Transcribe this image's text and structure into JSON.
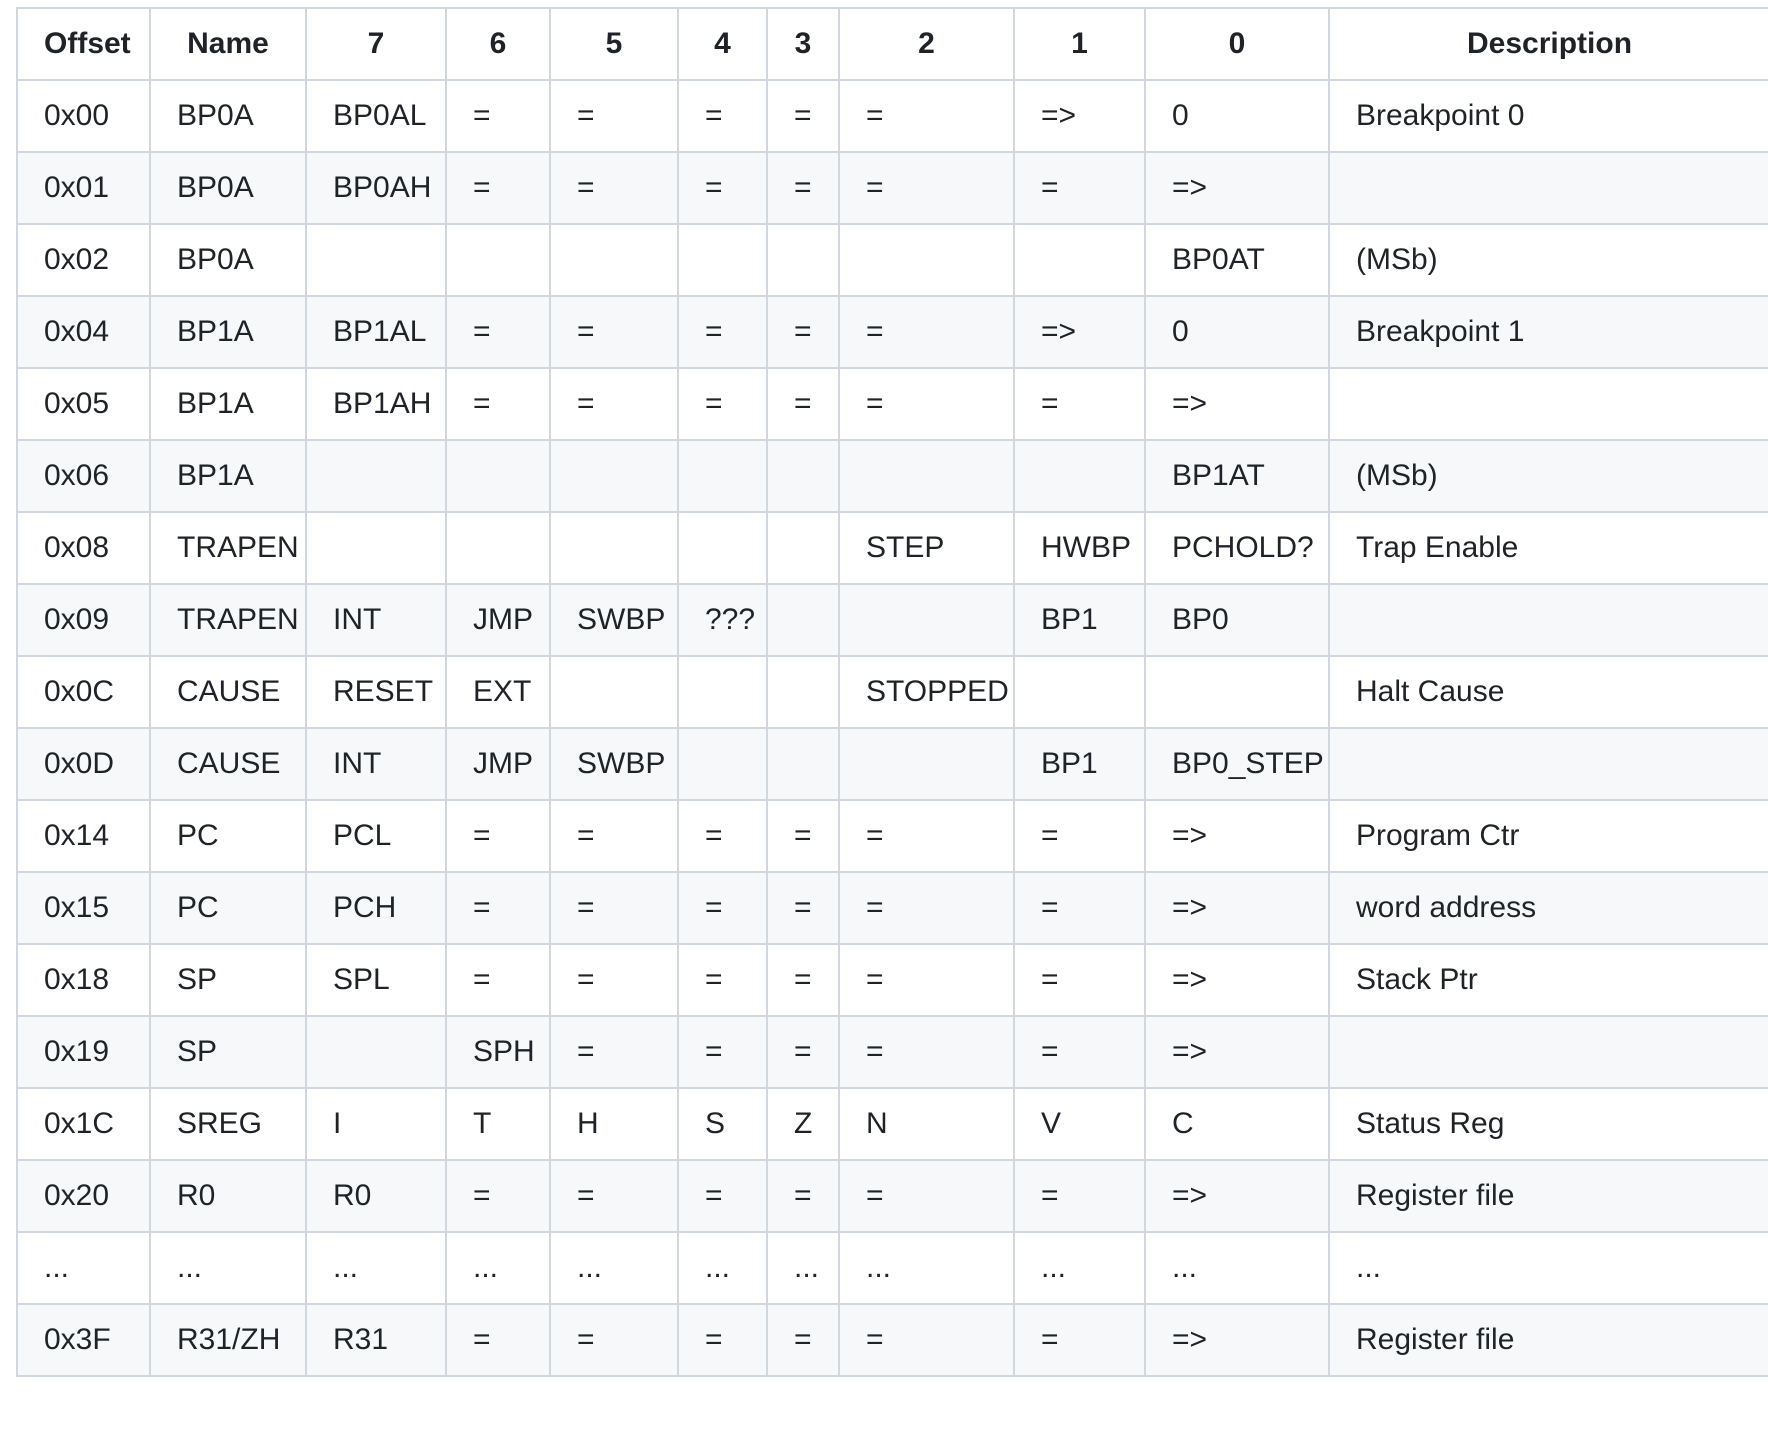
{
  "table": {
    "headers": [
      "Offset",
      "Name",
      "7",
      "6",
      "5",
      "4",
      "3",
      "2",
      "1",
      "0",
      "Description"
    ],
    "rows": [
      [
        "0x00",
        "BP0A",
        "BP0AL",
        "=",
        "=",
        "=",
        "=",
        "=",
        "=>",
        "0",
        "Breakpoint 0"
      ],
      [
        "0x01",
        "BP0A",
        "BP0AH",
        "=",
        "=",
        "=",
        "=",
        "=",
        "=",
        "=>",
        ""
      ],
      [
        "0x02",
        "BP0A",
        "",
        "",
        "",
        "",
        "",
        "",
        "",
        "BP0AT",
        "(MSb)"
      ],
      [
        "0x04",
        "BP1A",
        "BP1AL",
        "=",
        "=",
        "=",
        "=",
        "=",
        "=>",
        "0",
        "Breakpoint 1"
      ],
      [
        "0x05",
        "BP1A",
        "BP1AH",
        "=",
        "=",
        "=",
        "=",
        "=",
        "=",
        "=>",
        ""
      ],
      [
        "0x06",
        "BP1A",
        "",
        "",
        "",
        "",
        "",
        "",
        "",
        "BP1AT",
        "(MSb)"
      ],
      [
        "0x08",
        "TRAPEN",
        "",
        "",
        "",
        "",
        "",
        "STEP",
        "HWBP",
        "PCHOLD?",
        "Trap Enable"
      ],
      [
        "0x09",
        "TRAPEN",
        "INT",
        "JMP",
        "SWBP",
        "???",
        "",
        "",
        "BP1",
        "BP0",
        ""
      ],
      [
        "0x0C",
        "CAUSE",
        "RESET",
        "EXT",
        "",
        "",
        "",
        "STOPPED",
        "",
        "",
        "Halt Cause"
      ],
      [
        "0x0D",
        "CAUSE",
        "INT",
        "JMP",
        "SWBP",
        "",
        "",
        "",
        "BP1",
        "BP0_STEP",
        ""
      ],
      [
        "0x14",
        "PC",
        "PCL",
        "=",
        "=",
        "=",
        "=",
        "=",
        "=",
        "=>",
        "Program Ctr"
      ],
      [
        "0x15",
        "PC",
        "PCH",
        "=",
        "=",
        "=",
        "=",
        "=",
        "=",
        "=>",
        "word address"
      ],
      [
        "0x18",
        "SP",
        "SPL",
        "=",
        "=",
        "=",
        "=",
        "=",
        "=",
        "=>",
        "Stack Ptr"
      ],
      [
        "0x19",
        "SP",
        "",
        "SPH",
        "=",
        "=",
        "=",
        "=",
        "=",
        "=>",
        ""
      ],
      [
        "0x1C",
        "SREG",
        "I",
        "T",
        "H",
        "S",
        "Z",
        "N",
        "V",
        "C",
        "Status Reg"
      ],
      [
        "0x20",
        "R0",
        "R0",
        "=",
        "=",
        "=",
        "=",
        "=",
        "=",
        "=>",
        "Register file"
      ],
      [
        "...",
        "...",
        "...",
        "...",
        "...",
        "...",
        "...",
        "...",
        "...",
        "...",
        "..."
      ],
      [
        "0x3F",
        "R31/ZH",
        "R31",
        "=",
        "=",
        "=",
        "=",
        "=",
        "=",
        "=>",
        "Register file"
      ]
    ]
  }
}
